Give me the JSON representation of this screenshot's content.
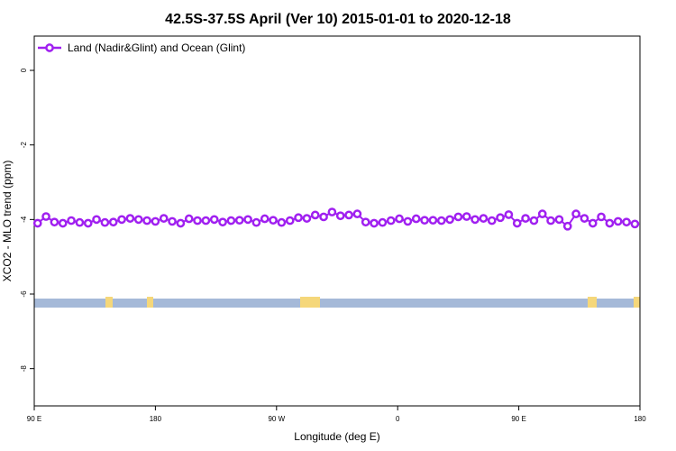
{
  "chart_data": {
    "type": "line",
    "title": "42.5S-37.5S April (Ver 10)   2015-01-01 to 2020-12-18",
    "xlabel": "Longitude (deg E)",
    "ylabel": "XCO2 - MLO trend (ppm)",
    "xlim": [
      90,
      540
    ],
    "ylim": [
      -9,
      0.92
    ],
    "xticks": [
      {
        "value": 90,
        "label": "90 E"
      },
      {
        "value": 180,
        "label": "180"
      },
      {
        "value": 270,
        "label": "90 W"
      },
      {
        "value": 360,
        "label": "0"
      },
      {
        "value": 450,
        "label": "90 E"
      },
      {
        "value": 540,
        "label": "180"
      }
    ],
    "yticks": [
      0,
      -2,
      -4,
      -6,
      -8
    ],
    "legend": "topleft",
    "x": [
      92.5,
      98.75,
      105,
      111.25,
      117.5,
      123.75,
      130,
      136.25,
      142.5,
      148.75,
      155,
      161.25,
      167.5,
      173.75,
      180,
      186.25,
      192.5,
      198.75,
      205,
      211.25,
      217.5,
      223.75,
      230,
      236.25,
      242.5,
      248.75,
      255,
      261.25,
      267.5,
      273.75,
      280,
      286.25,
      292.5,
      298.75,
      305,
      311.25,
      317.5,
      323.75,
      330,
      336.25,
      342.5,
      348.75,
      355,
      361.25,
      367.5,
      373.75,
      380,
      386.25,
      392.5,
      398.75,
      405,
      411.25,
      417.5,
      423.75,
      430,
      436.25,
      442.5,
      448.75,
      455,
      461.25,
      467.5,
      473.75,
      480,
      486.25,
      492.5,
      498.75,
      505,
      511.25,
      517.5,
      523.75,
      530,
      536.25
    ],
    "series": [
      {
        "name": "Land (Nadir&Glint) and Ocean (Glint)",
        "color": "#a020f0",
        "values": [
          -4.1,
          -3.92,
          -4.07,
          -4.1,
          -4.03,
          -4.08,
          -4.1,
          -4.0,
          -4.08,
          -4.07,
          -4.0,
          -3.97,
          -4.0,
          -4.03,
          -4.05,
          -3.97,
          -4.05,
          -4.1,
          -3.98,
          -4.03,
          -4.03,
          -4.0,
          -4.07,
          -4.03,
          -4.02,
          -4.0,
          -4.08,
          -3.98,
          -4.02,
          -4.08,
          -4.03,
          -3.95,
          -3.97,
          -3.88,
          -3.93,
          -3.8,
          -3.9,
          -3.88,
          -3.85,
          -4.07,
          -4.1,
          -4.08,
          -4.03,
          -3.98,
          -4.05,
          -3.98,
          -4.02,
          -4.02,
          -4.03,
          -4.0,
          -3.93,
          -3.92,
          -4.0,
          -3.97,
          -4.03,
          -3.95,
          -3.87,
          -4.1,
          -3.97,
          -4.03,
          -3.85,
          -4.03,
          -4.0,
          -4.18,
          -3.85,
          -3.97,
          -4.1,
          -3.93,
          -4.1,
          -4.05,
          -4.07,
          -4.12
        ]
      }
    ]
  }
}
